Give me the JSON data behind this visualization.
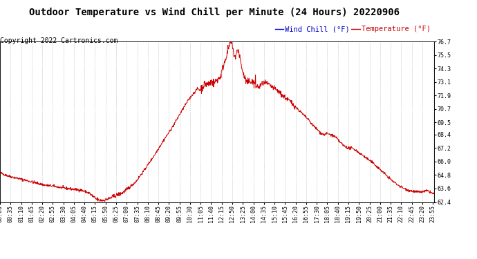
{
  "title": "Outdoor Temperature vs Wind Chill per Minute (24 Hours) 20220906",
  "copyright": "Copyright 2022 Cartronics.com",
  "legend_wind_chill": "Wind Chill (°F)",
  "legend_temperature": "Temperature (°F)",
  "wind_chill_color": "#0000cc",
  "temperature_color": "#cc0000",
  "line_color": "#cc0000",
  "background_color": "#ffffff",
  "grid_color": "#999999",
  "ylim_min": 62.4,
  "ylim_max": 76.7,
  "yticks": [
    62.4,
    63.6,
    64.8,
    66.0,
    67.2,
    68.4,
    69.5,
    70.7,
    71.9,
    73.1,
    74.3,
    75.5,
    76.7
  ],
  "title_fontsize": 10,
  "tick_fontsize": 6,
  "copyright_fontsize": 7,
  "legend_fontsize": 7.5
}
